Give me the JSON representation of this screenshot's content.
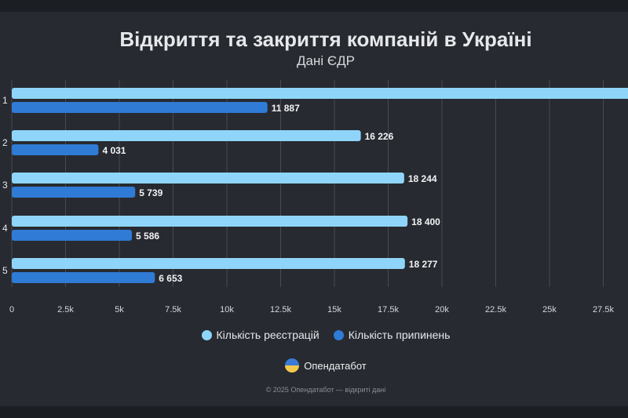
{
  "header": {
    "title": "Відкриття та закриття компаній в Україні",
    "subtitle": "Дані ЄДР"
  },
  "chart_data": {
    "type": "bar",
    "orientation": "horizontal",
    "categories": [
      "1",
      "2",
      "3",
      "4",
      "5"
    ],
    "series": [
      {
        "name": "Кількість реєстрацій",
        "color": "#8fd5f9",
        "values": [
          29200,
          16226,
          18244,
          18400,
          18277
        ],
        "labels": [
          "",
          "16 226",
          "18 244",
          "18 400",
          "18 277"
        ]
      },
      {
        "name": "Кількість припинень",
        "color": "#2f7bd6",
        "values": [
          11887,
          4031,
          5739,
          5586,
          6653
        ],
        "labels": [
          "11 887",
          "4 031",
          "5 739",
          "5 586",
          "6 653"
        ]
      }
    ],
    "xlim": [
      0,
      28700
    ],
    "xticks": [
      0,
      2500,
      5000,
      7500,
      10000,
      12500,
      15000,
      17500,
      20000,
      22500,
      25000,
      27500
    ],
    "xtick_labels": [
      "0",
      "2.5k",
      "5k",
      "7.5k",
      "10k",
      "12.5k",
      "15k",
      "17.5k",
      "20k",
      "22.5k",
      "25k",
      "27.5k"
    ],
    "grid": true,
    "legend": "bottom-center"
  },
  "brand": {
    "name": "Опендатабот"
  },
  "footer": {
    "text": "© 2025 Опендатабот — відкриті дані"
  }
}
